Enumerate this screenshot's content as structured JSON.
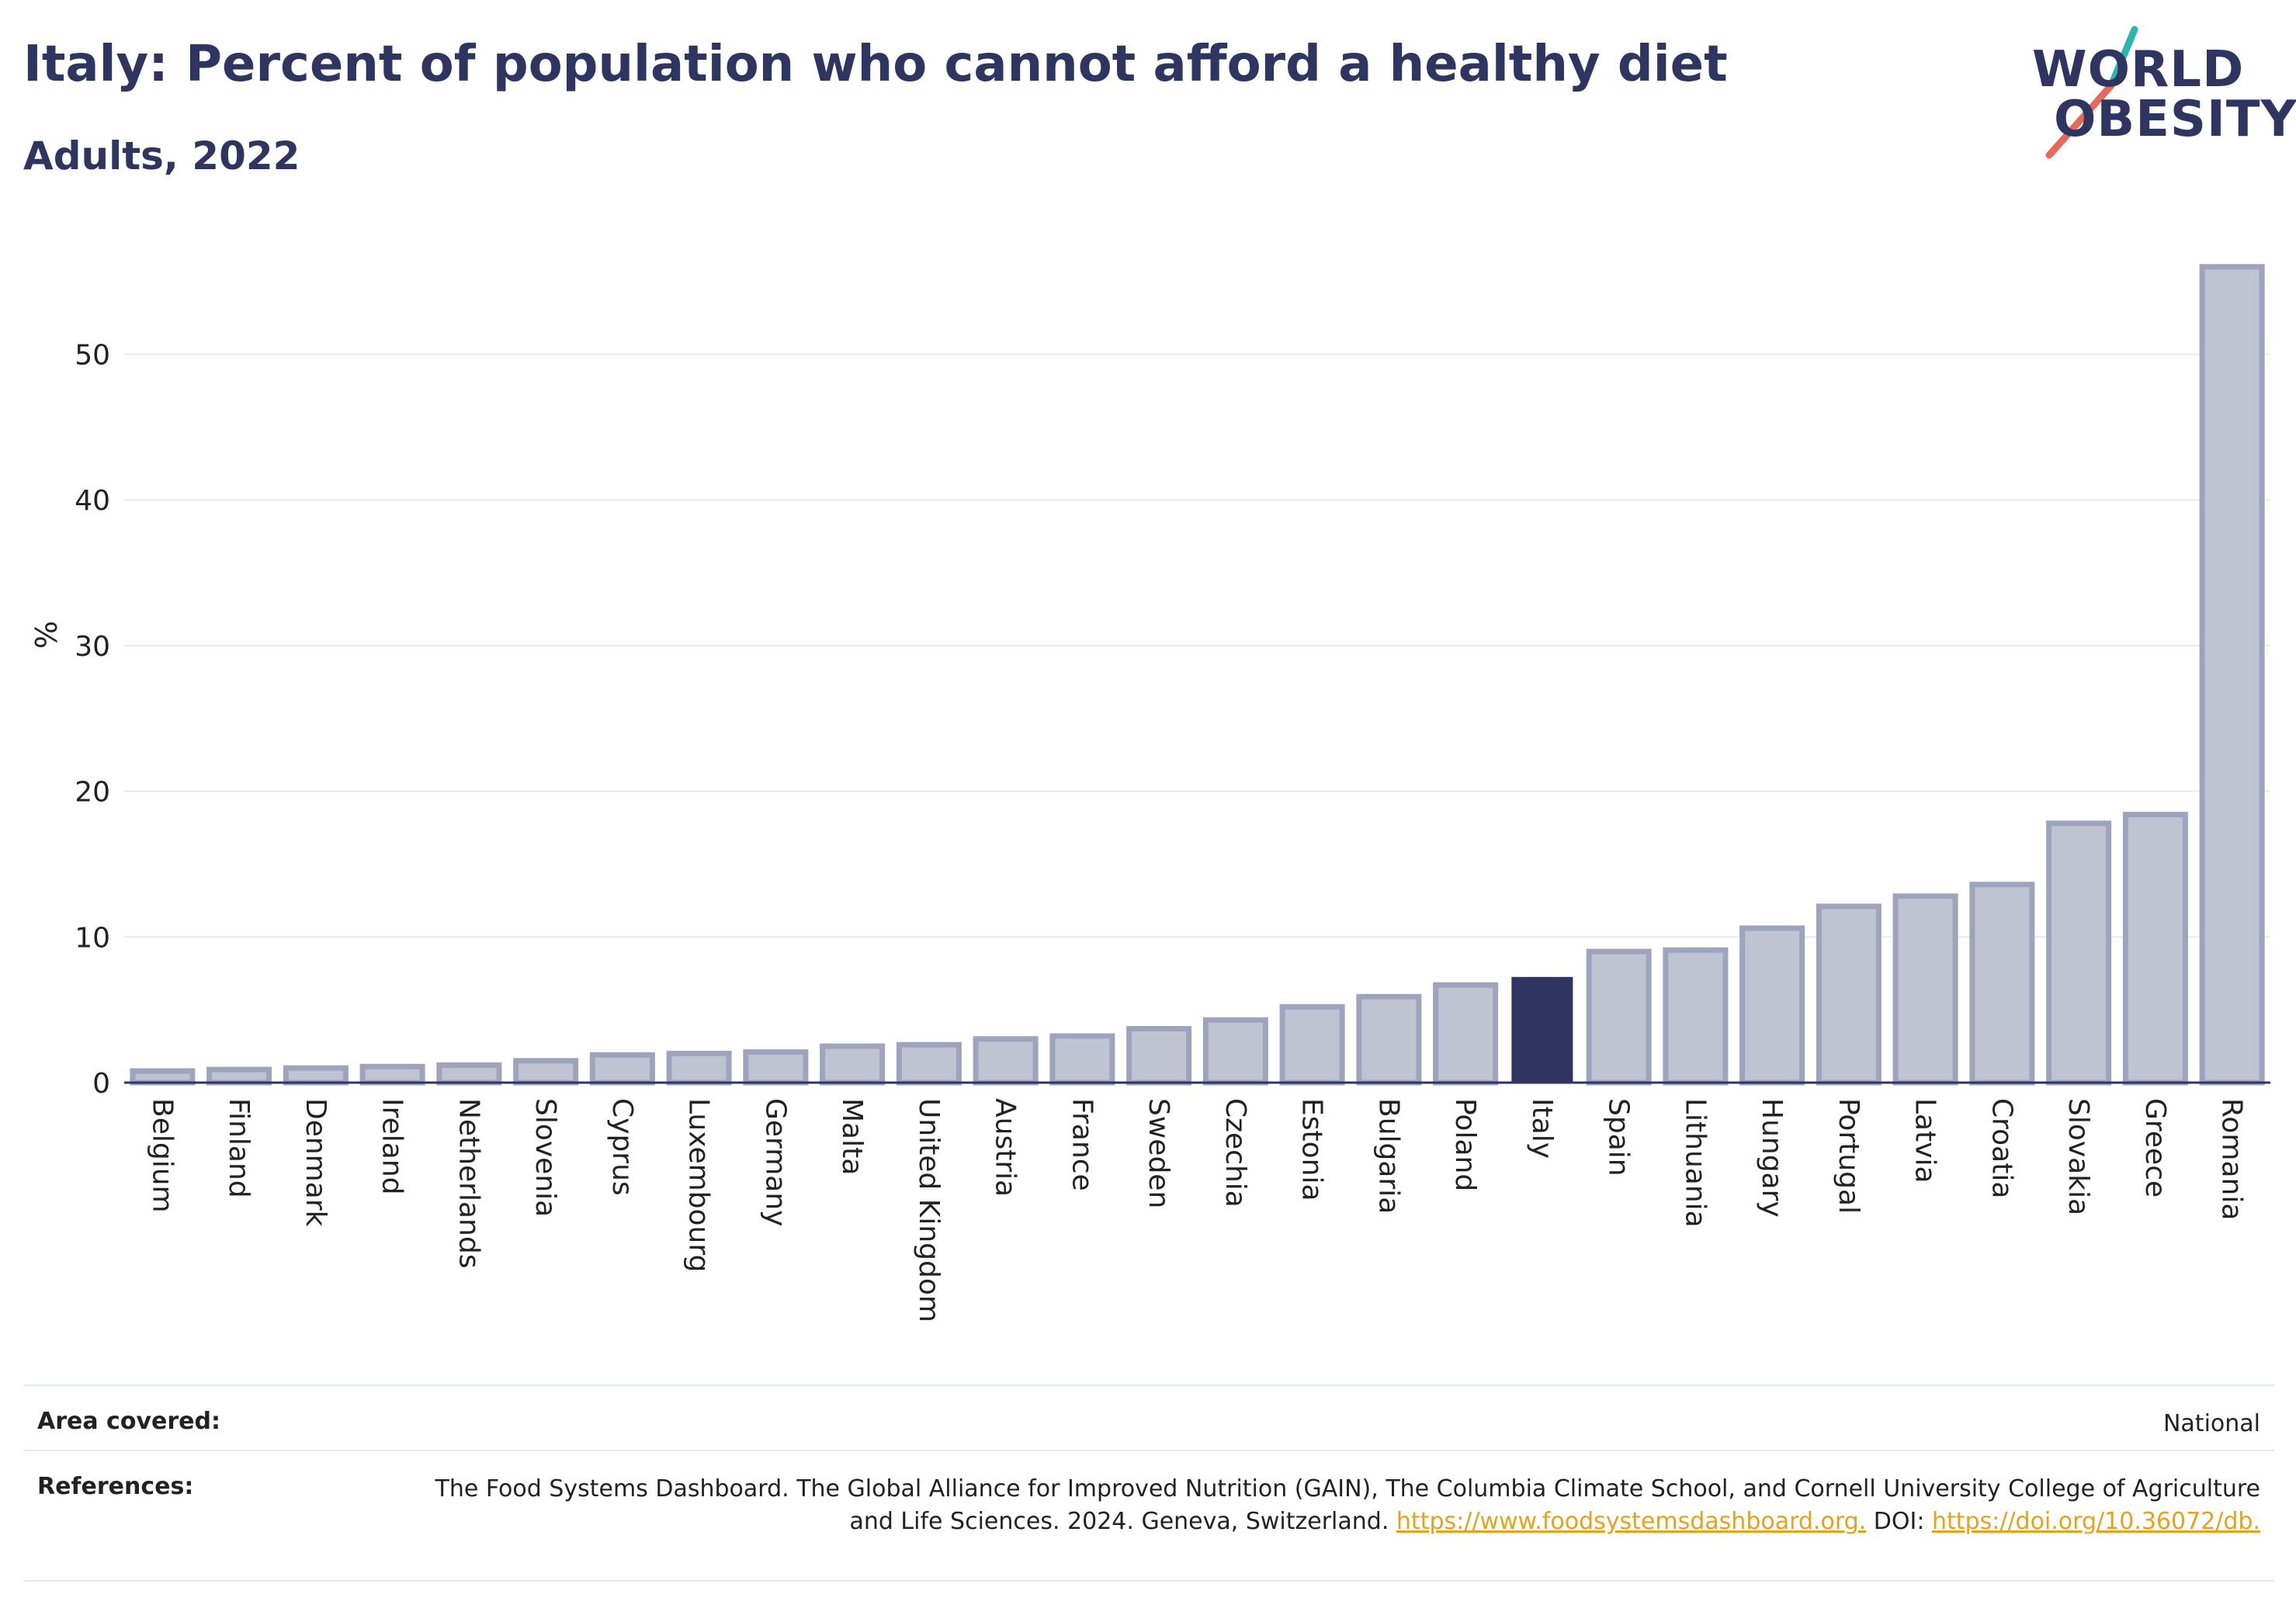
{
  "header": {
    "title": "Italy: Percent of population who cannot afford a healthy diet",
    "subtitle": "Adults, 2022"
  },
  "logo": {
    "line1": "WORLD",
    "line2": "OBESITY",
    "colors": {
      "text": "#2d3560",
      "slash_top": "#2bb5b0",
      "slash_bottom": "#e8685a"
    }
  },
  "chart_data": {
    "type": "bar",
    "ylabel": "%",
    "ylim": [
      0,
      57
    ],
    "yticks": [
      0,
      10,
      20,
      30,
      40,
      50
    ],
    "grid": true,
    "highlight": "Italy",
    "colors": {
      "bar": "#2d3560",
      "bar_faded_fill": "#bfc3d2",
      "bar_faded_stroke": "#9ea4bd"
    },
    "categories": [
      "Belgium",
      "Finland",
      "Denmark",
      "Ireland",
      "Netherlands",
      "Slovenia",
      "Cyprus",
      "Luxembourg",
      "Germany",
      "Malta",
      "United Kingdom",
      "Austria",
      "France",
      "Sweden",
      "Czechia",
      "Estonia",
      "Bulgaria",
      "Poland",
      "Italy",
      "Spain",
      "Lithuania",
      "Hungary",
      "Portugal",
      "Latvia",
      "Croatia",
      "Slovakia",
      "Greece",
      "Romania"
    ],
    "values": [
      0.8,
      0.9,
      1.0,
      1.1,
      1.2,
      1.5,
      1.9,
      2.0,
      2.1,
      2.5,
      2.6,
      3.0,
      3.2,
      3.7,
      4.3,
      5.2,
      5.9,
      6.7,
      7.2,
      9.0,
      9.1,
      10.6,
      12.1,
      12.8,
      13.6,
      17.8,
      18.4,
      56.0
    ]
  },
  "info": {
    "area_label": "Area covered:",
    "area_value": "National",
    "references_label": "References:",
    "references_text": "The Food Systems Dashboard. The Global Alliance for Improved Nutrition (GAIN), The Columbia Climate School, and Cornell University College of Agriculture and Life Sciences. 2024. Geneva, Switzerland.",
    "references_link1": "https://www.foodsystemsdashboard.org.",
    "references_doi_label": "DOI:",
    "references_link2": "https://doi.org/10.36072/db."
  }
}
